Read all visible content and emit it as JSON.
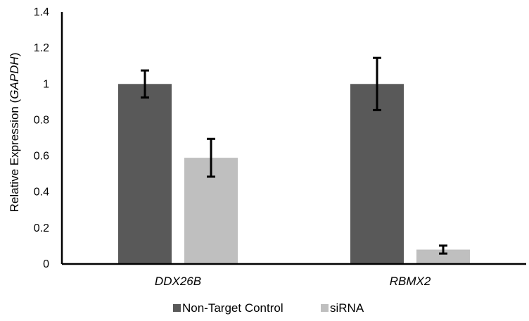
{
  "chart_data": {
    "type": "bar",
    "categories": [
      "DDX26B",
      "RBMX2"
    ],
    "series": [
      {
        "name": "Non-Target Control",
        "values": [
          1.0,
          1.0
        ],
        "error": [
          0.075,
          0.145
        ],
        "color": "#595959"
      },
      {
        "name": "siRNA",
        "values": [
          0.59,
          0.08
        ],
        "error": [
          0.105,
          0.022
        ],
        "color": "#bfbfbf"
      }
    ],
    "ylabel_main": "Relative Expression (",
    "ylabel_italic": "GAPDH",
    "ylabel_close": ")",
    "ylim": [
      0,
      1.4
    ],
    "yticks": [
      "0",
      "0.2",
      "0.4",
      "0.6",
      "0.8",
      "1",
      "1.2",
      "1.4"
    ],
    "grid": false,
    "legend_position": "bottom"
  }
}
